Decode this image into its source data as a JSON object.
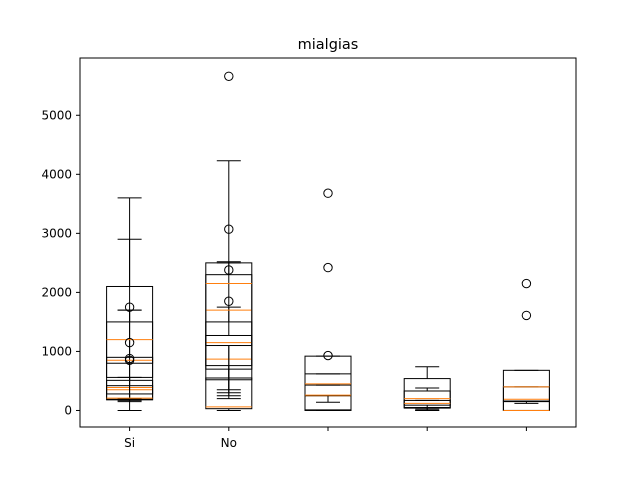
{
  "chart_data": {
    "type": "boxplot",
    "title": "mialgias",
    "xlabel": "",
    "ylabel": "",
    "categories": [
      "Si",
      "No"
    ],
    "ylim": [
      -280,
      5970
    ],
    "xlim": [
      0.5,
      5.5
    ],
    "yticks": [
      0,
      1000,
      2000,
      3000,
      4000,
      5000
    ],
    "grid": false,
    "legend": "none",
    "colors": {
      "box": "#000000",
      "median": "#ff7f0e"
    },
    "boxes": [
      {
        "pos": 1,
        "whislo": 0,
        "q1": 180,
        "med": 350,
        "q3": 900,
        "whishi": 1700,
        "fliers": []
      },
      {
        "pos": 1,
        "whislo": 170,
        "q1": 280,
        "med": 390,
        "q3": 510,
        "whishi": 2900,
        "fliers": []
      },
      {
        "pos": 1,
        "whislo": 200,
        "q1": 560,
        "med": 850,
        "q3": 1500,
        "whishi": 1700,
        "fliers": []
      },
      {
        "pos": 1,
        "whislo": 180,
        "q1": 800,
        "med": 1200,
        "q3": 2100,
        "whishi": 3600,
        "fliers": [
          1750,
          1150
        ]
      },
      {
        "pos": 1,
        "whislo": 150,
        "q1": 190,
        "med": 210,
        "q3": 420,
        "whishi": 560,
        "fliers": [
          850,
          880
        ]
      },
      {
        "pos": 2,
        "whislo": 0,
        "q1": 30,
        "med": 60,
        "q3": 550,
        "whishi": 1100,
        "fliers": []
      },
      {
        "pos": 2,
        "whislo": 200,
        "q1": 520,
        "med": 870,
        "q3": 1270,
        "whishi": 1750,
        "fliers": []
      },
      {
        "pos": 2,
        "whislo": 250,
        "q1": 700,
        "med": 1150,
        "q3": 1500,
        "whishi": 4230,
        "fliers": [
          5660,
          3070
        ]
      },
      {
        "pos": 2,
        "whislo": 300,
        "q1": 760,
        "med": 1700,
        "q3": 2300,
        "whishi": 2500,
        "fliers": [
          1850,
          2380
        ]
      },
      {
        "pos": 2,
        "whislo": 350,
        "q1": 1100,
        "med": 2150,
        "q3": 2500,
        "whishi": 2520,
        "fliers": []
      },
      {
        "pos": 3,
        "whislo": 0,
        "q1": 10,
        "med": 250,
        "q3": 920,
        "whishi": 920,
        "fliers": [
          3680,
          2420,
          930
        ]
      },
      {
        "pos": 3,
        "whislo": 140,
        "q1": 250,
        "med": 450,
        "q3": 620,
        "whishi": 620,
        "fliers": []
      },
      {
        "pos": 3,
        "whislo": 0,
        "q1": 0,
        "med": 260,
        "q3": 430,
        "whishi": 430,
        "fliers": []
      },
      {
        "pos": 4,
        "whislo": 0,
        "q1": 50,
        "med": 330,
        "q3": 540,
        "whishi": 740,
        "fliers": []
      },
      {
        "pos": 4,
        "whislo": 20,
        "q1": 90,
        "med": 200,
        "q3": 330,
        "whishi": 380,
        "fliers": []
      },
      {
        "pos": 4,
        "whislo": 0,
        "q1": 40,
        "med": 120,
        "q3": 170,
        "whishi": 170,
        "fliers": []
      },
      {
        "pos": 5,
        "whislo": 0,
        "q1": 0,
        "med": 190,
        "q3": 680,
        "whishi": 680,
        "fliers": [
          2150,
          1610
        ]
      },
      {
        "pos": 5,
        "whislo": 120,
        "q1": 150,
        "med": 400,
        "q3": 400,
        "whishi": 400,
        "fliers": []
      },
      {
        "pos": 5,
        "whislo": 0,
        "q1": 0,
        "med": 0,
        "q3": 160,
        "whishi": 160,
        "fliers": []
      }
    ]
  }
}
